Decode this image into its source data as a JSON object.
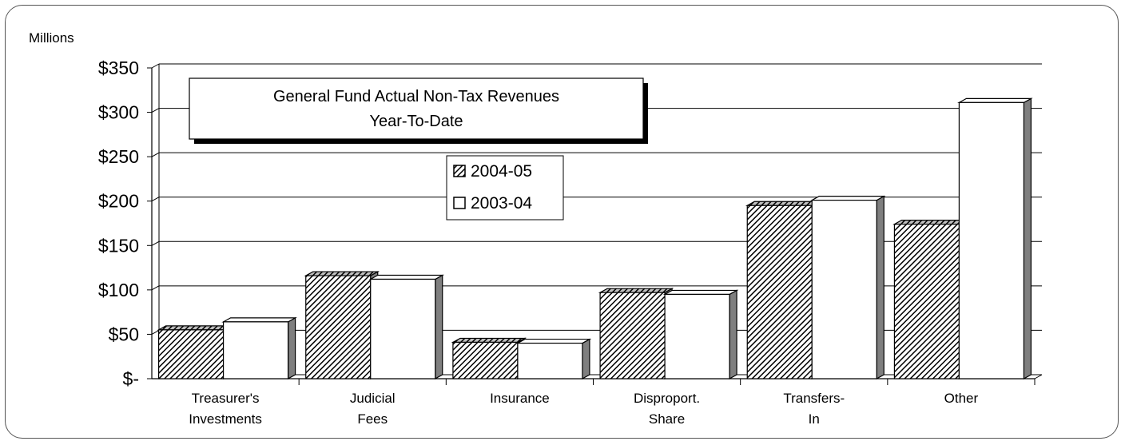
{
  "chart_data": {
    "type": "bar",
    "title": "General Fund Actual Non-Tax Revenues",
    "subtitle": "Year-To-Date",
    "unit_label": "Millions",
    "categories": [
      [
        "Treasurer's",
        "Investments"
      ],
      [
        "Judicial",
        "Fees"
      ],
      [
        "Insurance"
      ],
      [
        "Disproport.",
        "Share"
      ],
      [
        "Transfers-",
        "In"
      ],
      [
        "Other"
      ]
    ],
    "series": [
      {
        "name": "2004-05",
        "values": [
          55,
          116,
          41,
          97,
          195,
          174
        ],
        "pattern": "hatched",
        "color": "#7f7f7f"
      },
      {
        "name": "2003-04",
        "values": [
          64,
          112,
          40,
          95,
          201,
          311
        ],
        "pattern": "solid",
        "color": "#ffffff"
      }
    ],
    "ylim": [
      0,
      350
    ],
    "yticks": [
      0,
      50,
      100,
      150,
      200,
      250,
      300,
      350
    ],
    "ytick_labels": [
      "$-",
      "$50",
      "$100",
      "$150",
      "$200",
      "$250",
      "$300",
      "$350"
    ],
    "grid": true,
    "legend": "center"
  }
}
